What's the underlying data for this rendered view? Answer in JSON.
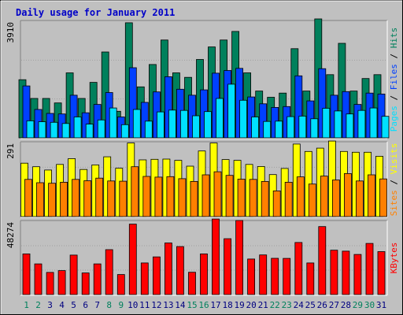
{
  "chart_data": {
    "type": "bar",
    "title": "Daily usage for January 2011",
    "categories": [
      "1",
      "2",
      "3",
      "4",
      "5",
      "6",
      "7",
      "8",
      "9",
      "10",
      "11",
      "12",
      "13",
      "14",
      "15",
      "16",
      "17",
      "18",
      "19",
      "20",
      "21",
      "22",
      "23",
      "24",
      "25",
      "26",
      "27",
      "28",
      "29",
      "30",
      "31"
    ],
    "weekend_days": [
      "1",
      "2",
      "8",
      "9",
      "15",
      "16",
      "22",
      "23",
      "29",
      "30"
    ],
    "colors": {
      "hits": "#00805c",
      "files": "#0040ff",
      "pages": "#00e0ff",
      "visits": "#ffff00",
      "sites": "#ff8000",
      "kbytes": "#ff0000",
      "background": "#c0c0c0",
      "weekday_label": "#000080",
      "weekend_label": "#00805c"
    },
    "panels": [
      {
        "name": "hits-files-pages",
        "max_label": "3910",
        "ylim": [
          0,
          3910
        ],
        "side_labels": [
          {
            "text": "Pages",
            "color": "#00e0ff"
          },
          {
            "text": " / ",
            "color": "#000000"
          },
          {
            "text": "Files",
            "color": "#0040ff"
          },
          {
            "text": " / ",
            "color": "#000000"
          },
          {
            "text": "Hits",
            "color": "#00805c"
          }
        ],
        "series": [
          {
            "name": "Hits",
            "color": "#00805c",
            "values": [
              1950,
              1320,
              1320,
              1170,
              2180,
              1320,
              1860,
              2880,
              890,
              3860,
              1710,
              2460,
              3280,
              2180,
              2030,
              2630,
              3050,
              3280,
              3570,
              2180,
              1570,
              1360,
              1500,
              2990,
              1570,
              3990,
              2120,
              3170,
              1570,
              1990,
              2120
            ]
          },
          {
            "name": "Files",
            "color": "#0040ff",
            "values": [
              1740,
              950,
              820,
              800,
              1430,
              840,
              1120,
              1520,
              700,
              2350,
              1190,
              1540,
              2050,
              1630,
              1430,
              1610,
              2170,
              2260,
              2330,
              1370,
              1140,
              1020,
              1050,
              2080,
              1240,
              2320,
              1430,
              1550,
              1120,
              1500,
              1470
            ]
          },
          {
            "name": "Pages",
            "color": "#00e0ff",
            "values": [
              570,
              540,
              520,
              480,
              700,
              460,
              600,
              1000,
              440,
              950,
              560,
              870,
              930,
              920,
              740,
              880,
              1320,
              1800,
              1260,
              700,
              550,
              560,
              710,
              730,
              640,
              990,
              900,
              800,
              920,
              1000,
              720
            ]
          }
        ]
      },
      {
        "name": "visits-sites",
        "max_label": "291",
        "ylim": [
          0,
          291
        ],
        "side_labels": [
          {
            "text": "Sites",
            "color": "#ff8000"
          },
          {
            "text": " / ",
            "color": "#000000"
          },
          {
            "text": "Visits",
            "color": "#ffff00"
          }
        ],
        "series": [
          {
            "name": "Visits",
            "color": "#ffff00",
            "values": [
              210,
              196,
              183,
              205,
              228,
              185,
              203,
              235,
              190,
              289,
              223,
              225,
              226,
              221,
              198,
              258,
              289,
              224,
              221,
              205,
              197,
              165,
              189,
              285,
              256,
              269,
              297,
              256,
              253,
              253,
              237
            ]
          },
          {
            "name": "Sites",
            "color": "#ff8000",
            "values": [
              146,
              133,
              131,
              135,
              146,
              141,
              151,
              140,
              139,
              196,
              158,
              155,
              157,
              149,
              138,
              164,
              176,
              162,
              147,
              146,
              138,
              101,
              135,
              156,
              128,
              159,
              144,
              169,
              140,
              164,
              148
            ]
          }
        ]
      },
      {
        "name": "kbytes",
        "max_label": "48274",
        "ylim": [
          0,
          48274
        ],
        "side_labels": [
          {
            "text": "KBytes",
            "color": "#ff0000"
          }
        ],
        "series": [
          {
            "name": "KBytes",
            "color": "#ff0000",
            "values": [
              26800,
              20200,
              14600,
              15800,
              26000,
              14200,
              20200,
              29600,
              13200,
              46400,
              20800,
              24800,
              34000,
              31600,
              14700,
              26800,
              49800,
              36800,
              48800,
              23400,
              26100,
              23900,
              23800,
              34300,
              20800,
              44800,
              29200,
              28600,
              26400,
              33700,
              28300
            ]
          }
        ]
      }
    ]
  }
}
